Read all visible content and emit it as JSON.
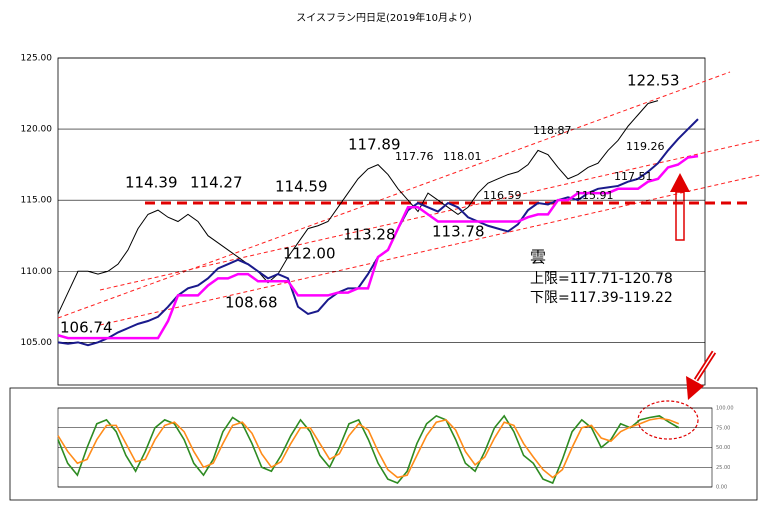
{
  "chart_data": [
    {
      "type": "line",
      "title": "スイスフラン円日足(2019年10月より)",
      "ylim": [
        102,
        125
      ],
      "yticks": [
        {
          "value": 105,
          "label": "105.00"
        },
        {
          "value": 110,
          "label": "110.00"
        },
        {
          "value": 115,
          "label": "115.00"
        },
        {
          "value": 120,
          "label": "120.00"
        },
        {
          "value": 125,
          "label": "125.00"
        }
      ],
      "grid": true,
      "series": [
        {
          "color": "#000000",
          "values": [
            107.0,
            108.5,
            110.0,
            110.0,
            109.8,
            110.0,
            110.5,
            111.5,
            113.0,
            114.0,
            114.3,
            113.8,
            113.5,
            114.0,
            113.5,
            112.5,
            112.0,
            111.5,
            111.0,
            110.5,
            110.0,
            109.2,
            109.8,
            111.0,
            112.0,
            113.0,
            113.2,
            113.5,
            114.5,
            115.5,
            116.5,
            117.2,
            117.5,
            116.8,
            115.8,
            115.0,
            114.2,
            115.5,
            115.0,
            114.5,
            114.0,
            114.5,
            115.5,
            116.2,
            116.5,
            116.8,
            117.0,
            117.5,
            118.5,
            118.2,
            117.3,
            116.5,
            116.8,
            117.3,
            117.6,
            118.5,
            119.2,
            120.2,
            121.0,
            121.8,
            122.0
          ]
        },
        {
          "color": "#1a1a8c",
          "values": [
            105.0,
            104.9,
            105.0,
            104.8,
            105.0,
            105.3,
            105.7,
            106.0,
            106.3,
            106.5,
            106.8,
            107.5,
            108.3,
            108.8,
            109.0,
            109.5,
            110.2,
            110.5,
            110.8,
            110.5,
            110.0,
            109.5,
            109.8,
            109.5,
            107.5,
            107.0,
            107.2,
            108.0,
            108.5,
            108.8,
            108.8,
            109.8,
            111.0,
            111.5,
            113.0,
            114.3,
            114.8,
            114.5,
            114.2,
            114.8,
            114.5,
            113.8,
            113.5,
            113.2,
            113.0,
            112.8,
            113.3,
            114.3,
            114.8,
            114.7,
            115.0,
            115.2,
            115.0,
            115.5,
            115.8,
            115.9,
            116.0,
            116.3,
            116.5,
            117.0,
            117.6,
            118.5,
            119.3,
            120.0,
            120.7
          ]
        },
        {
          "color": "#ff00ff",
          "values": [
            105.5,
            105.3,
            105.3,
            105.3,
            105.3,
            105.3,
            105.3,
            105.3,
            105.3,
            105.3,
            105.3,
            106.5,
            108.3,
            108.3,
            108.3,
            109.0,
            109.5,
            109.5,
            109.8,
            109.8,
            109.3,
            109.3,
            109.3,
            109.3,
            108.3,
            108.3,
            108.3,
            108.3,
            108.5,
            108.5,
            108.8,
            108.8,
            111.0,
            111.5,
            113.0,
            114.5,
            114.5,
            114.0,
            113.5,
            113.5,
            113.5,
            113.5,
            113.5,
            113.5,
            113.5,
            113.5,
            113.5,
            113.8,
            114.0,
            114.0,
            115.0,
            115.0,
            115.5,
            115.5,
            115.5,
            115.5,
            115.8,
            115.8,
            115.8,
            116.3,
            116.5,
            117.3,
            117.5,
            118.0,
            118.1
          ]
        }
      ],
      "annotations": [
        "106.74",
        "114.39",
        "114.27",
        "114.59",
        "112.00",
        "108.68",
        "117.89",
        "117.76",
        "118.01",
        "113.28",
        "113.78",
        "116.59",
        "118.87",
        "115.91",
        "117.51",
        "119.26",
        "122.53",
        "雲",
        "上限=117.71-120.78",
        "下限=117.39-119.22"
      ]
    },
    {
      "type": "line",
      "ylim": [
        0,
        100
      ],
      "yticks": [
        {
          "value": 100,
          "label": "100.00"
        },
        {
          "value": 75,
          "label": "75.00"
        },
        {
          "value": 50,
          "label": "50.00"
        },
        {
          "value": 25,
          "label": "25.00"
        },
        {
          "value": 0,
          "label": "0.00"
        }
      ],
      "grid": true,
      "series": [
        {
          "color": "#2e8b22",
          "values": [
            60,
            30,
            15,
            50,
            80,
            85,
            70,
            40,
            20,
            45,
            75,
            85,
            80,
            60,
            30,
            15,
            35,
            70,
            88,
            80,
            55,
            25,
            20,
            40,
            65,
            85,
            70,
            40,
            25,
            50,
            80,
            85,
            60,
            30,
            10,
            5,
            20,
            55,
            80,
            90,
            85,
            60,
            30,
            20,
            45,
            75,
            90,
            70,
            40,
            30,
            10,
            5,
            35,
            70,
            85,
            75,
            50,
            60,
            80,
            75,
            85,
            88,
            90,
            82,
            75
          ]
        },
        {
          "color": "#ff8c1a",
          "values": [
            65,
            45,
            30,
            35,
            60,
            78,
            78,
            55,
            32,
            35,
            60,
            78,
            82,
            70,
            45,
            25,
            30,
            55,
            78,
            82,
            68,
            42,
            25,
            32,
            55,
            75,
            75,
            55,
            35,
            42,
            65,
            80,
            72,
            45,
            22,
            12,
            15,
            40,
            65,
            82,
            85,
            72,
            45,
            28,
            38,
            62,
            82,
            78,
            55,
            38,
            22,
            12,
            22,
            50,
            75,
            78,
            62,
            58,
            70,
            76,
            80,
            85,
            87,
            85,
            80
          ]
        }
      ]
    }
  ]
}
